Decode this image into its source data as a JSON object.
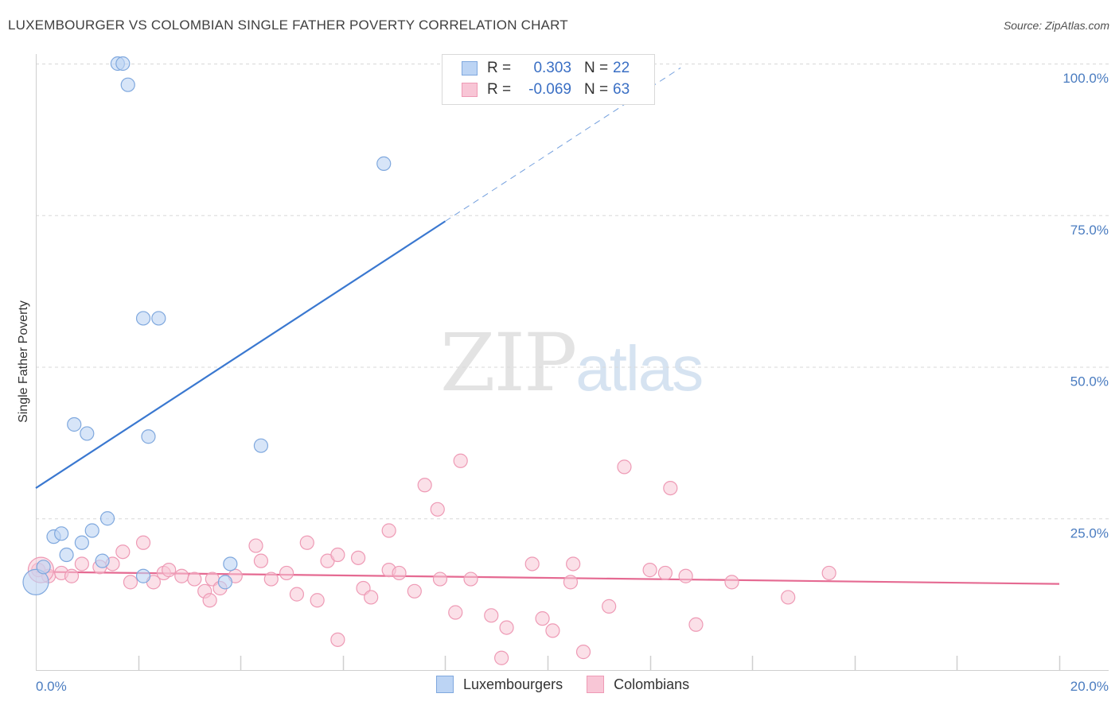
{
  "header": {
    "title": "LUXEMBOURGER VS COLOMBIAN SINGLE FATHER POVERTY CORRELATION CHART",
    "source": "Source: ZipAtlas.com"
  },
  "watermark": {
    "zip": "ZIP",
    "atlas": "atlas"
  },
  "legend": {
    "rows": [
      {
        "r_label": "R =",
        "r_value": "0.303",
        "n_label": "N =",
        "n_value": "22"
      },
      {
        "r_label": "R =",
        "r_value": "-0.069",
        "n_label": "N =",
        "n_value": "63"
      }
    ]
  },
  "bottom_legend": {
    "lux": "Luxembourgers",
    "col": "Colombians"
  },
  "colors": {
    "lux_fill": "#bcd4f4",
    "lux_stroke": "#7fa8de",
    "lux_line": "#3a78d0",
    "col_fill": "#f8c6d6",
    "col_stroke": "#ee9ab5",
    "col_line": "#e56a92",
    "grid": "#d8d8d8",
    "axis_text": "#4a7cc0"
  },
  "chart_data": {
    "type": "scatter",
    "title": "LUXEMBOURGER VS COLOMBIAN SINGLE FATHER POVERTY CORRELATION CHART",
    "xlabel": "",
    "ylabel": "Single Father Poverty",
    "xlim": [
      0,
      20
    ],
    "ylim": [
      0,
      100
    ],
    "x_tick_labels": [
      "0.0%",
      "20.0%"
    ],
    "y_ticks": [
      25,
      50,
      75,
      100
    ],
    "y_tick_labels": [
      "25.0%",
      "50.0%",
      "75.0%",
      "100.0%"
    ],
    "series": [
      {
        "name": "Luxembourgers",
        "r": 0.303,
        "n": 22,
        "trend": {
          "x0": 0,
          "y0": 30.0,
          "x1": 8.0,
          "y1": 74.0,
          "dash_to_x": 12.6
        },
        "points": [
          [
            0.0,
            14.5
          ],
          [
            0.15,
            17.0
          ],
          [
            0.35,
            22.0
          ],
          [
            0.5,
            22.5
          ],
          [
            0.6,
            19.0
          ],
          [
            0.9,
            21.0
          ],
          [
            1.1,
            23.0
          ],
          [
            1.4,
            25.0
          ],
          [
            1.3,
            18.0
          ],
          [
            0.75,
            40.5
          ],
          [
            1.0,
            39.0
          ],
          [
            1.6,
            100.0
          ],
          [
            1.7,
            100.0
          ],
          [
            1.8,
            96.5
          ],
          [
            2.1,
            15.5
          ],
          [
            2.1,
            58.0
          ],
          [
            2.4,
            58.0
          ],
          [
            2.2,
            38.5
          ],
          [
            3.8,
            17.5
          ],
          [
            3.7,
            14.5
          ],
          [
            4.4,
            37.0
          ],
          [
            6.8,
            83.5
          ]
        ]
      },
      {
        "name": "Colombians",
        "r": -0.069,
        "n": 63,
        "trend": {
          "x0": 0,
          "y0": 16.2,
          "x1": 20,
          "y1": 14.2
        },
        "points": [
          [
            0.05,
            16.5
          ],
          [
            0.25,
            15.5
          ],
          [
            0.5,
            16.0
          ],
          [
            0.7,
            15.5
          ],
          [
            0.9,
            17.5
          ],
          [
            1.25,
            17.0
          ],
          [
            1.5,
            17.5
          ],
          [
            1.7,
            19.5
          ],
          [
            1.85,
            14.5
          ],
          [
            2.1,
            21.0
          ],
          [
            2.3,
            14.5
          ],
          [
            2.5,
            16.0
          ],
          [
            2.6,
            16.5
          ],
          [
            2.85,
            15.5
          ],
          [
            3.1,
            15.0
          ],
          [
            3.3,
            13.0
          ],
          [
            3.45,
            15.0
          ],
          [
            3.4,
            11.5
          ],
          [
            3.6,
            13.5
          ],
          [
            3.9,
            15.5
          ],
          [
            4.3,
            20.5
          ],
          [
            4.4,
            18.0
          ],
          [
            4.6,
            15.0
          ],
          [
            4.9,
            16.0
          ],
          [
            5.1,
            12.5
          ],
          [
            5.3,
            21.0
          ],
          [
            5.5,
            11.5
          ],
          [
            5.7,
            18.0
          ],
          [
            5.9,
            19.0
          ],
          [
            5.9,
            5.0
          ],
          [
            6.3,
            18.5
          ],
          [
            6.4,
            13.5
          ],
          [
            6.55,
            12.0
          ],
          [
            6.9,
            23.0
          ],
          [
            6.9,
            16.5
          ],
          [
            7.1,
            16.0
          ],
          [
            7.4,
            13.0
          ],
          [
            7.6,
            30.5
          ],
          [
            7.85,
            26.5
          ],
          [
            7.9,
            15.0
          ],
          [
            8.2,
            9.5
          ],
          [
            8.3,
            34.5
          ],
          [
            8.5,
            15.0
          ],
          [
            8.9,
            9.0
          ],
          [
            9.2,
            7.0
          ],
          [
            9.1,
            2.0
          ],
          [
            9.7,
            17.5
          ],
          [
            9.9,
            8.5
          ],
          [
            10.1,
            6.5
          ],
          [
            10.45,
            14.5
          ],
          [
            10.5,
            17.5
          ],
          [
            10.7,
            3.0
          ],
          [
            11.2,
            10.5
          ],
          [
            11.5,
            33.5
          ],
          [
            12.0,
            16.5
          ],
          [
            12.3,
            16.0
          ],
          [
            12.4,
            30.0
          ],
          [
            12.7,
            15.5
          ],
          [
            12.9,
            7.5
          ],
          [
            13.6,
            14.5
          ],
          [
            14.7,
            12.0
          ],
          [
            15.5,
            16.0
          ],
          [
            0.1,
            16.5
          ]
        ]
      }
    ]
  }
}
